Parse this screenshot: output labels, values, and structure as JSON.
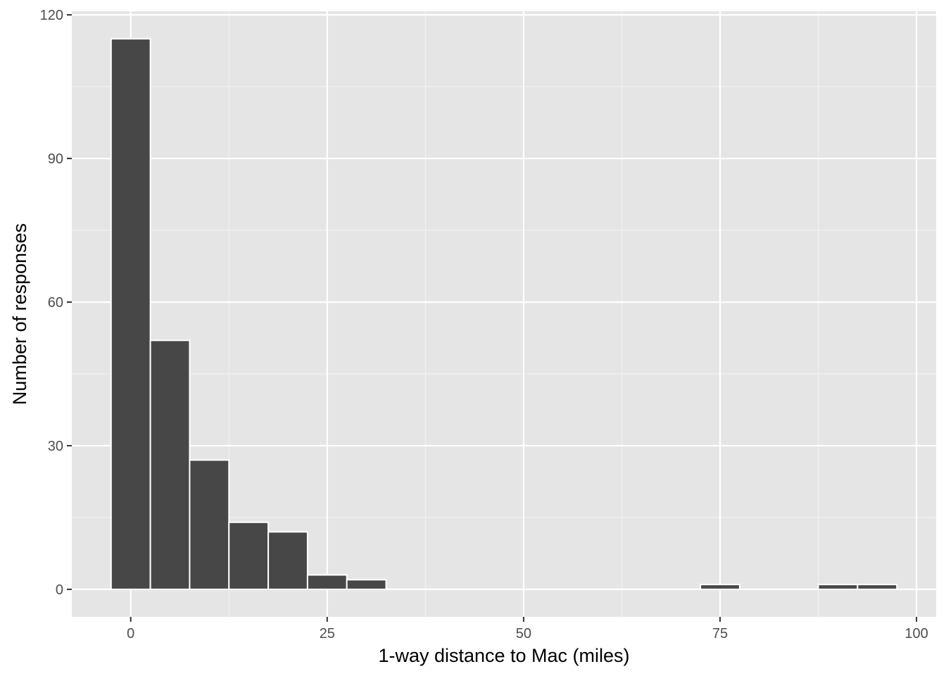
{
  "chart_data": {
    "type": "bar",
    "xlabel": "1-way distance to Mac (miles)",
    "ylabel": "Number of responses",
    "xlim": [
      -7.5,
      102.5
    ],
    "ylim": [
      -5.75,
      120.75
    ],
    "x_ticks": [
      0,
      25,
      50,
      75,
      100
    ],
    "x_tick_labels": [
      "0",
      "25",
      "50",
      "75",
      "100"
    ],
    "x_minor_ticks": [
      12.5,
      37.5,
      62.5,
      87.5
    ],
    "y_ticks": [
      0,
      30,
      60,
      90,
      120
    ],
    "y_tick_labels": [
      "0",
      "30",
      "60",
      "90",
      "120"
    ],
    "y_minor_ticks": [
      15,
      45,
      75,
      105
    ],
    "bin_width": 5,
    "bins": [
      {
        "x": 0,
        "count": 115
      },
      {
        "x": 5,
        "count": 52
      },
      {
        "x": 10,
        "count": 27
      },
      {
        "x": 15,
        "count": 14
      },
      {
        "x": 20,
        "count": 12
      },
      {
        "x": 25,
        "count": 3
      },
      {
        "x": 30,
        "count": 2
      },
      {
        "x": 35,
        "count": 0
      },
      {
        "x": 40,
        "count": 0
      },
      {
        "x": 45,
        "count": 0
      },
      {
        "x": 50,
        "count": 0
      },
      {
        "x": 55,
        "count": 0
      },
      {
        "x": 60,
        "count": 0
      },
      {
        "x": 65,
        "count": 0
      },
      {
        "x": 70,
        "count": 0
      },
      {
        "x": 75,
        "count": 1
      },
      {
        "x": 80,
        "count": 0
      },
      {
        "x": 85,
        "count": 0
      },
      {
        "x": 90,
        "count": 1
      },
      {
        "x": 95,
        "count": 1
      }
    ],
    "grid": true,
    "bar_color": "#474747",
    "panel_color": "#e5e5e5"
  }
}
